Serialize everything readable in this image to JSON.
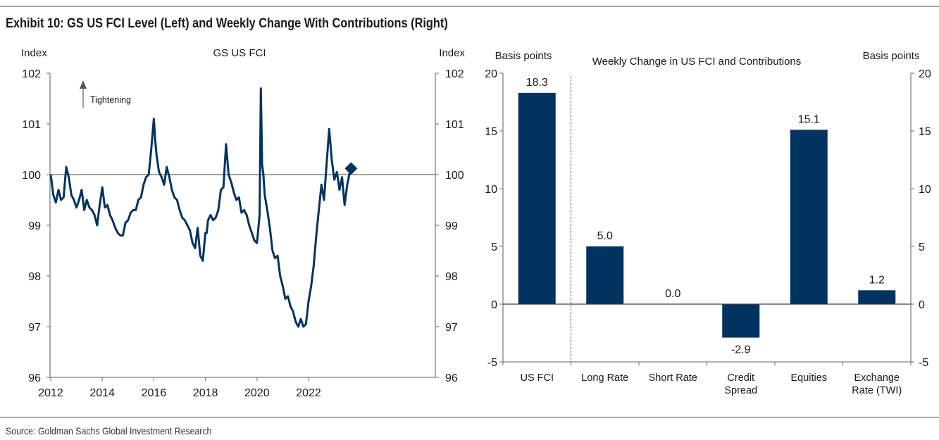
{
  "title": "Exhibit 10: GS US FCI Level (Left) and Weekly Change With Contributions (Right)",
  "source": "Source: Goldman Sachs Global Investment Research",
  "colors": {
    "series": "#003360",
    "axis": "#808080",
    "reference": "#808080",
    "annotation": "#7f7f7f"
  },
  "chart_data": [
    {
      "type": "line",
      "title": "GS US FCI",
      "ylabel_left": "Index",
      "ylabel_right": "Index",
      "xlabel": "",
      "xlim": [
        2012,
        2024.3
      ],
      "ylim": [
        96,
        102
      ],
      "x_ticks": [
        "2012",
        "2014",
        "2016",
        "2018",
        "2020",
        "2022"
      ],
      "x_tick_values": [
        2012,
        2014,
        2016,
        2018,
        2020,
        2022
      ],
      "y_ticks": [
        "96",
        "97",
        "98",
        "99",
        "100",
        "101",
        "102"
      ],
      "y_tick_values": [
        96,
        97,
        98,
        99,
        100,
        101,
        102
      ],
      "reference_line": 100,
      "annotation": "Tightening",
      "latest_marker": {
        "x": 2023.65,
        "y": 100.12,
        "shape": "diamond"
      },
      "series": [
        {
          "name": "GS US FCI",
          "x": [
            2012.0,
            2012.1,
            2012.2,
            2012.3,
            2012.4,
            2012.5,
            2012.6,
            2012.7,
            2012.8,
            2012.9,
            2013.0,
            2013.1,
            2013.2,
            2013.3,
            2013.4,
            2013.5,
            2013.6,
            2013.7,
            2013.8,
            2013.9,
            2014.0,
            2014.1,
            2014.2,
            2014.3,
            2014.4,
            2014.5,
            2014.6,
            2014.7,
            2014.8,
            2014.9,
            2015.0,
            2015.1,
            2015.2,
            2015.3,
            2015.4,
            2015.5,
            2015.6,
            2015.7,
            2015.8,
            2015.9,
            2016.0,
            2016.05,
            2016.1,
            2016.2,
            2016.3,
            2016.4,
            2016.5,
            2016.6,
            2016.7,
            2016.8,
            2016.9,
            2017.0,
            2017.1,
            2017.2,
            2017.3,
            2017.4,
            2017.5,
            2017.6,
            2017.7,
            2017.8,
            2017.9,
            2018.0,
            2018.05,
            2018.1,
            2018.2,
            2018.3,
            2018.4,
            2018.5,
            2018.6,
            2018.7,
            2018.8,
            2018.9,
            2019.0,
            2019.1,
            2019.2,
            2019.3,
            2019.4,
            2019.5,
            2019.6,
            2019.7,
            2019.8,
            2019.9,
            2020.0,
            2020.1,
            2020.15,
            2020.2,
            2020.25,
            2020.3,
            2020.4,
            2020.5,
            2020.6,
            2020.7,
            2020.8,
            2020.9,
            2021.0,
            2021.1,
            2021.2,
            2021.3,
            2021.4,
            2021.5,
            2021.6,
            2021.7,
            2021.8,
            2021.9,
            2022.0,
            2022.1,
            2022.2,
            2022.3,
            2022.4,
            2022.5,
            2022.6,
            2022.7,
            2022.8,
            2022.9,
            2023.0,
            2023.1,
            2023.2,
            2023.3,
            2023.4,
            2023.5,
            2023.6
          ],
          "y": [
            100.0,
            99.6,
            99.45,
            99.7,
            99.5,
            99.55,
            100.15,
            99.95,
            99.6,
            99.5,
            99.35,
            99.5,
            99.7,
            99.3,
            99.5,
            99.35,
            99.3,
            99.2,
            99.0,
            99.4,
            99.75,
            99.35,
            99.4,
            99.2,
            99.1,
            98.95,
            98.85,
            98.8,
            98.8,
            99.05,
            99.1,
            99.25,
            99.3,
            99.3,
            99.5,
            99.55,
            99.8,
            99.95,
            100.0,
            100.5,
            101.1,
            100.7,
            100.4,
            100.05,
            99.95,
            99.8,
            100.15,
            99.95,
            99.7,
            99.55,
            99.5,
            99.3,
            99.15,
            99.1,
            99.0,
            98.9,
            98.65,
            98.55,
            98.95,
            98.4,
            98.3,
            98.85,
            98.85,
            99.1,
            99.2,
            99.1,
            99.15,
            99.3,
            99.7,
            99.75,
            100.6,
            100.0,
            99.85,
            99.65,
            99.5,
            99.55,
            99.25,
            99.3,
            99.2,
            99.0,
            98.85,
            98.7,
            98.65,
            99.2,
            101.7,
            100.2,
            100.0,
            99.6,
            99.3,
            98.95,
            98.5,
            98.35,
            98.4,
            98.0,
            97.8,
            97.55,
            97.6,
            97.4,
            97.3,
            97.1,
            97.0,
            97.15,
            97.0,
            97.05,
            97.5,
            97.8,
            98.2,
            98.8,
            99.3,
            99.8,
            99.5,
            100.2,
            100.9,
            100.3,
            99.9,
            100.05,
            99.7,
            99.95,
            99.4,
            99.8,
            100.05
          ]
        }
      ]
    },
    {
      "type": "bar",
      "title": "Weekly Change in US FCI and Contributions",
      "ylabel_left": "Basis points",
      "ylabel_right": "Basis points",
      "xlabel": "",
      "ylim": [
        -5,
        20
      ],
      "y_ticks": [
        "-5",
        "0",
        "5",
        "10",
        "15",
        "20"
      ],
      "y_tick_values": [
        -5,
        0,
        5,
        10,
        15,
        20
      ],
      "categories": [
        [
          "US FCI"
        ],
        [
          "Long Rate"
        ],
        [
          "Short Rate"
        ],
        [
          "Credit",
          "Spread"
        ],
        [
          "Equities"
        ],
        [
          "Exchange",
          "Rate (TWI)"
        ]
      ],
      "values": [
        18.3,
        5.0,
        0.0,
        -2.9,
        15.1,
        1.2
      ],
      "data_labels": [
        "18.3",
        "5.0",
        "0.0",
        "-2.9",
        "15.1",
        "1.2"
      ],
      "separator_after_category": 0
    }
  ]
}
